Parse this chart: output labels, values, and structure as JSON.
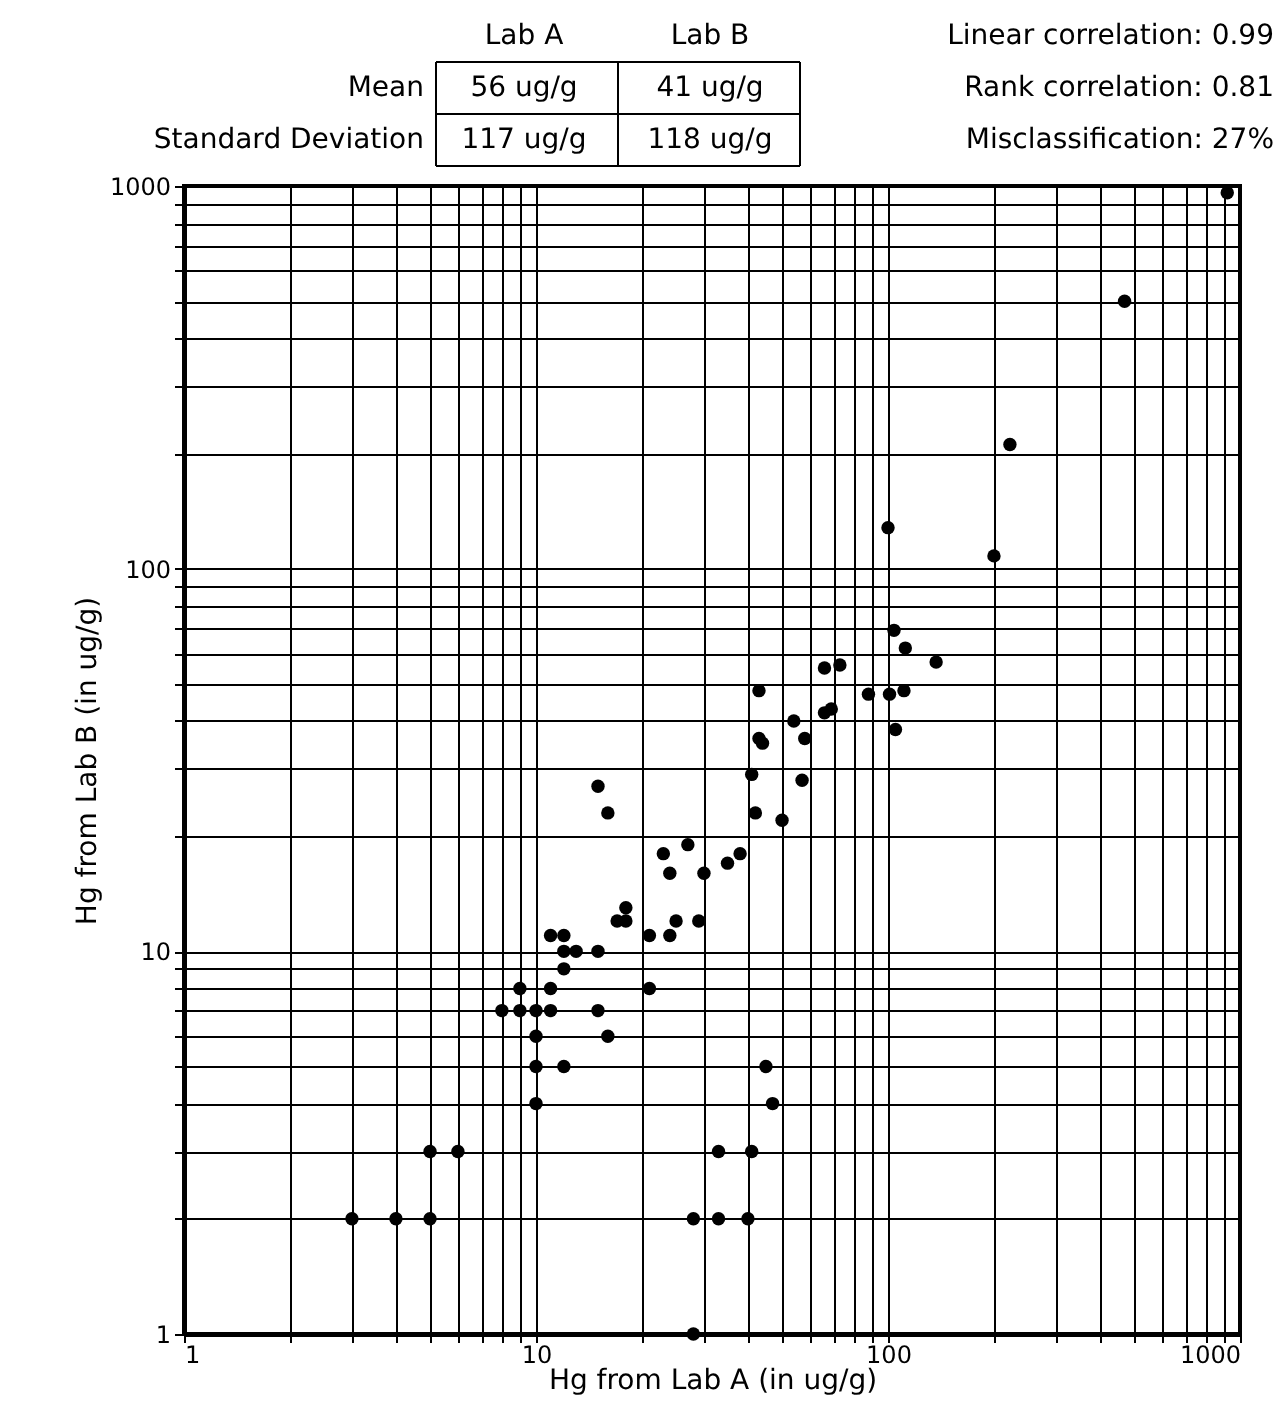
{
  "chart_data": {
    "type": "scatter",
    "xlabel": "Hg from Lab A (in ug/g)",
    "ylabel": "Hg from Lab B (in ug/g)",
    "annotations": [
      "Lab A",
      "Lab B",
      "Mean",
      "56 ug/g",
      "41 ug/g",
      "Standard Deviation",
      "117 ug/g",
      "118 ug/g",
      "Linear correlation: 0.99",
      "Rank correlation: 0.81",
      "Misclassification: 27%"
    ],
    "series": [
      {
        "color": "#000000",
        "x": [
          3,
          4,
          5,
          5,
          6,
          10,
          10,
          12,
          10,
          16,
          8,
          9,
          10,
          11,
          15,
          9,
          11,
          21,
          12,
          12,
          13,
          15,
          11,
          12,
          21,
          24,
          17,
          18,
          25,
          29,
          18,
          24,
          30,
          35,
          38,
          23,
          27,
          15,
          16,
          41,
          57,
          42,
          50,
          43,
          44,
          58,
          54,
          66,
          69,
          43,
          88,
          101,
          111,
          105,
          66,
          73,
          137,
          112,
          104,
          100,
          200,
          222,
          470,
          920,
          28,
          28,
          33,
          40,
          33,
          41,
          45,
          47
        ],
        "values": [
          2,
          2,
          2,
          3,
          3,
          4,
          5,
          5,
          6,
          6,
          7,
          7,
          7,
          7,
          7,
          8,
          8,
          8,
          9,
          10,
          10,
          10,
          11,
          11,
          11,
          11,
          12,
          12,
          12,
          12,
          13,
          16,
          16,
          17,
          18,
          18,
          19,
          27,
          23,
          29,
          28,
          23,
          22,
          36,
          35,
          36,
          40,
          42,
          43,
          48,
          47,
          47,
          48,
          38,
          55,
          56,
          57,
          62,
          69,
          128,
          108,
          211,
          500,
          960,
          1,
          2,
          2,
          2,
          3,
          3,
          5,
          4
        ]
      }
    ],
    "xlim": [
      1,
      1000
    ],
    "ylim": [
      1,
      1000
    ],
    "xticks": [
      1,
      {
        "value": 2,
        "label": null
      },
      {
        "value": 3,
        "label": null
      },
      {
        "value": 4,
        "label": null
      },
      {
        "value": 5,
        "label": null
      },
      {
        "value": 6,
        "label": null
      },
      {
        "value": 7,
        "label": null
      },
      {
        "value": 8,
        "label": null
      },
      {
        "value": 9,
        "label": null
      },
      10,
      {
        "value": 20,
        "label": null
      },
      {
        "value": 30,
        "label": null
      },
      {
        "value": 40,
        "label": null
      },
      {
        "value": 50,
        "label": null
      },
      {
        "value": 60,
        "label": null
      },
      {
        "value": 70,
        "label": null
      },
      {
        "value": 80,
        "label": null
      },
      {
        "value": 90,
        "label": null
      },
      100,
      {
        "value": 200,
        "label": null
      },
      {
        "value": 300,
        "label": null
      },
      {
        "value": 400,
        "label": null
      },
      {
        "value": 500,
        "label": null
      },
      {
        "value": 600,
        "label": null
      },
      {
        "value": 700,
        "label": null
      },
      {
        "value": 800,
        "label": null
      },
      {
        "value": 900,
        "label": null
      },
      1000
    ],
    "yticks": [
      1,
      {
        "value": 2,
        "label": null
      },
      {
        "value": 3,
        "label": null
      },
      {
        "value": 4,
        "label": null
      },
      {
        "value": 5,
        "label": null
      },
      {
        "value": 6,
        "label": null
      },
      {
        "value": 7,
        "label": null
      },
      {
        "value": 8,
        "label": null
      },
      {
        "value": 9,
        "label": null
      },
      10,
      {
        "value": 20,
        "label": null
      },
      {
        "value": 30,
        "label": null
      },
      {
        "value": 40,
        "label": null
      },
      {
        "value": 50,
        "label": null
      },
      {
        "value": 60,
        "label": null
      },
      {
        "value": 70,
        "label": null
      },
      {
        "value": 80,
        "label": null
      },
      {
        "value": 90,
        "label": null
      },
      100,
      {
        "value": 200,
        "label": null
      },
      {
        "value": 300,
        "label": null
      },
      {
        "value": 400,
        "label": null
      },
      {
        "value": 500,
        "label": null
      },
      {
        "value": 600,
        "label": null
      },
      {
        "value": 700,
        "label": null
      },
      {
        "value": 800,
        "label": null
      },
      {
        "value": 900,
        "label": null
      },
      1000
    ],
    "log": "xy",
    "grid": true,
    "marker": "circle"
  }
}
